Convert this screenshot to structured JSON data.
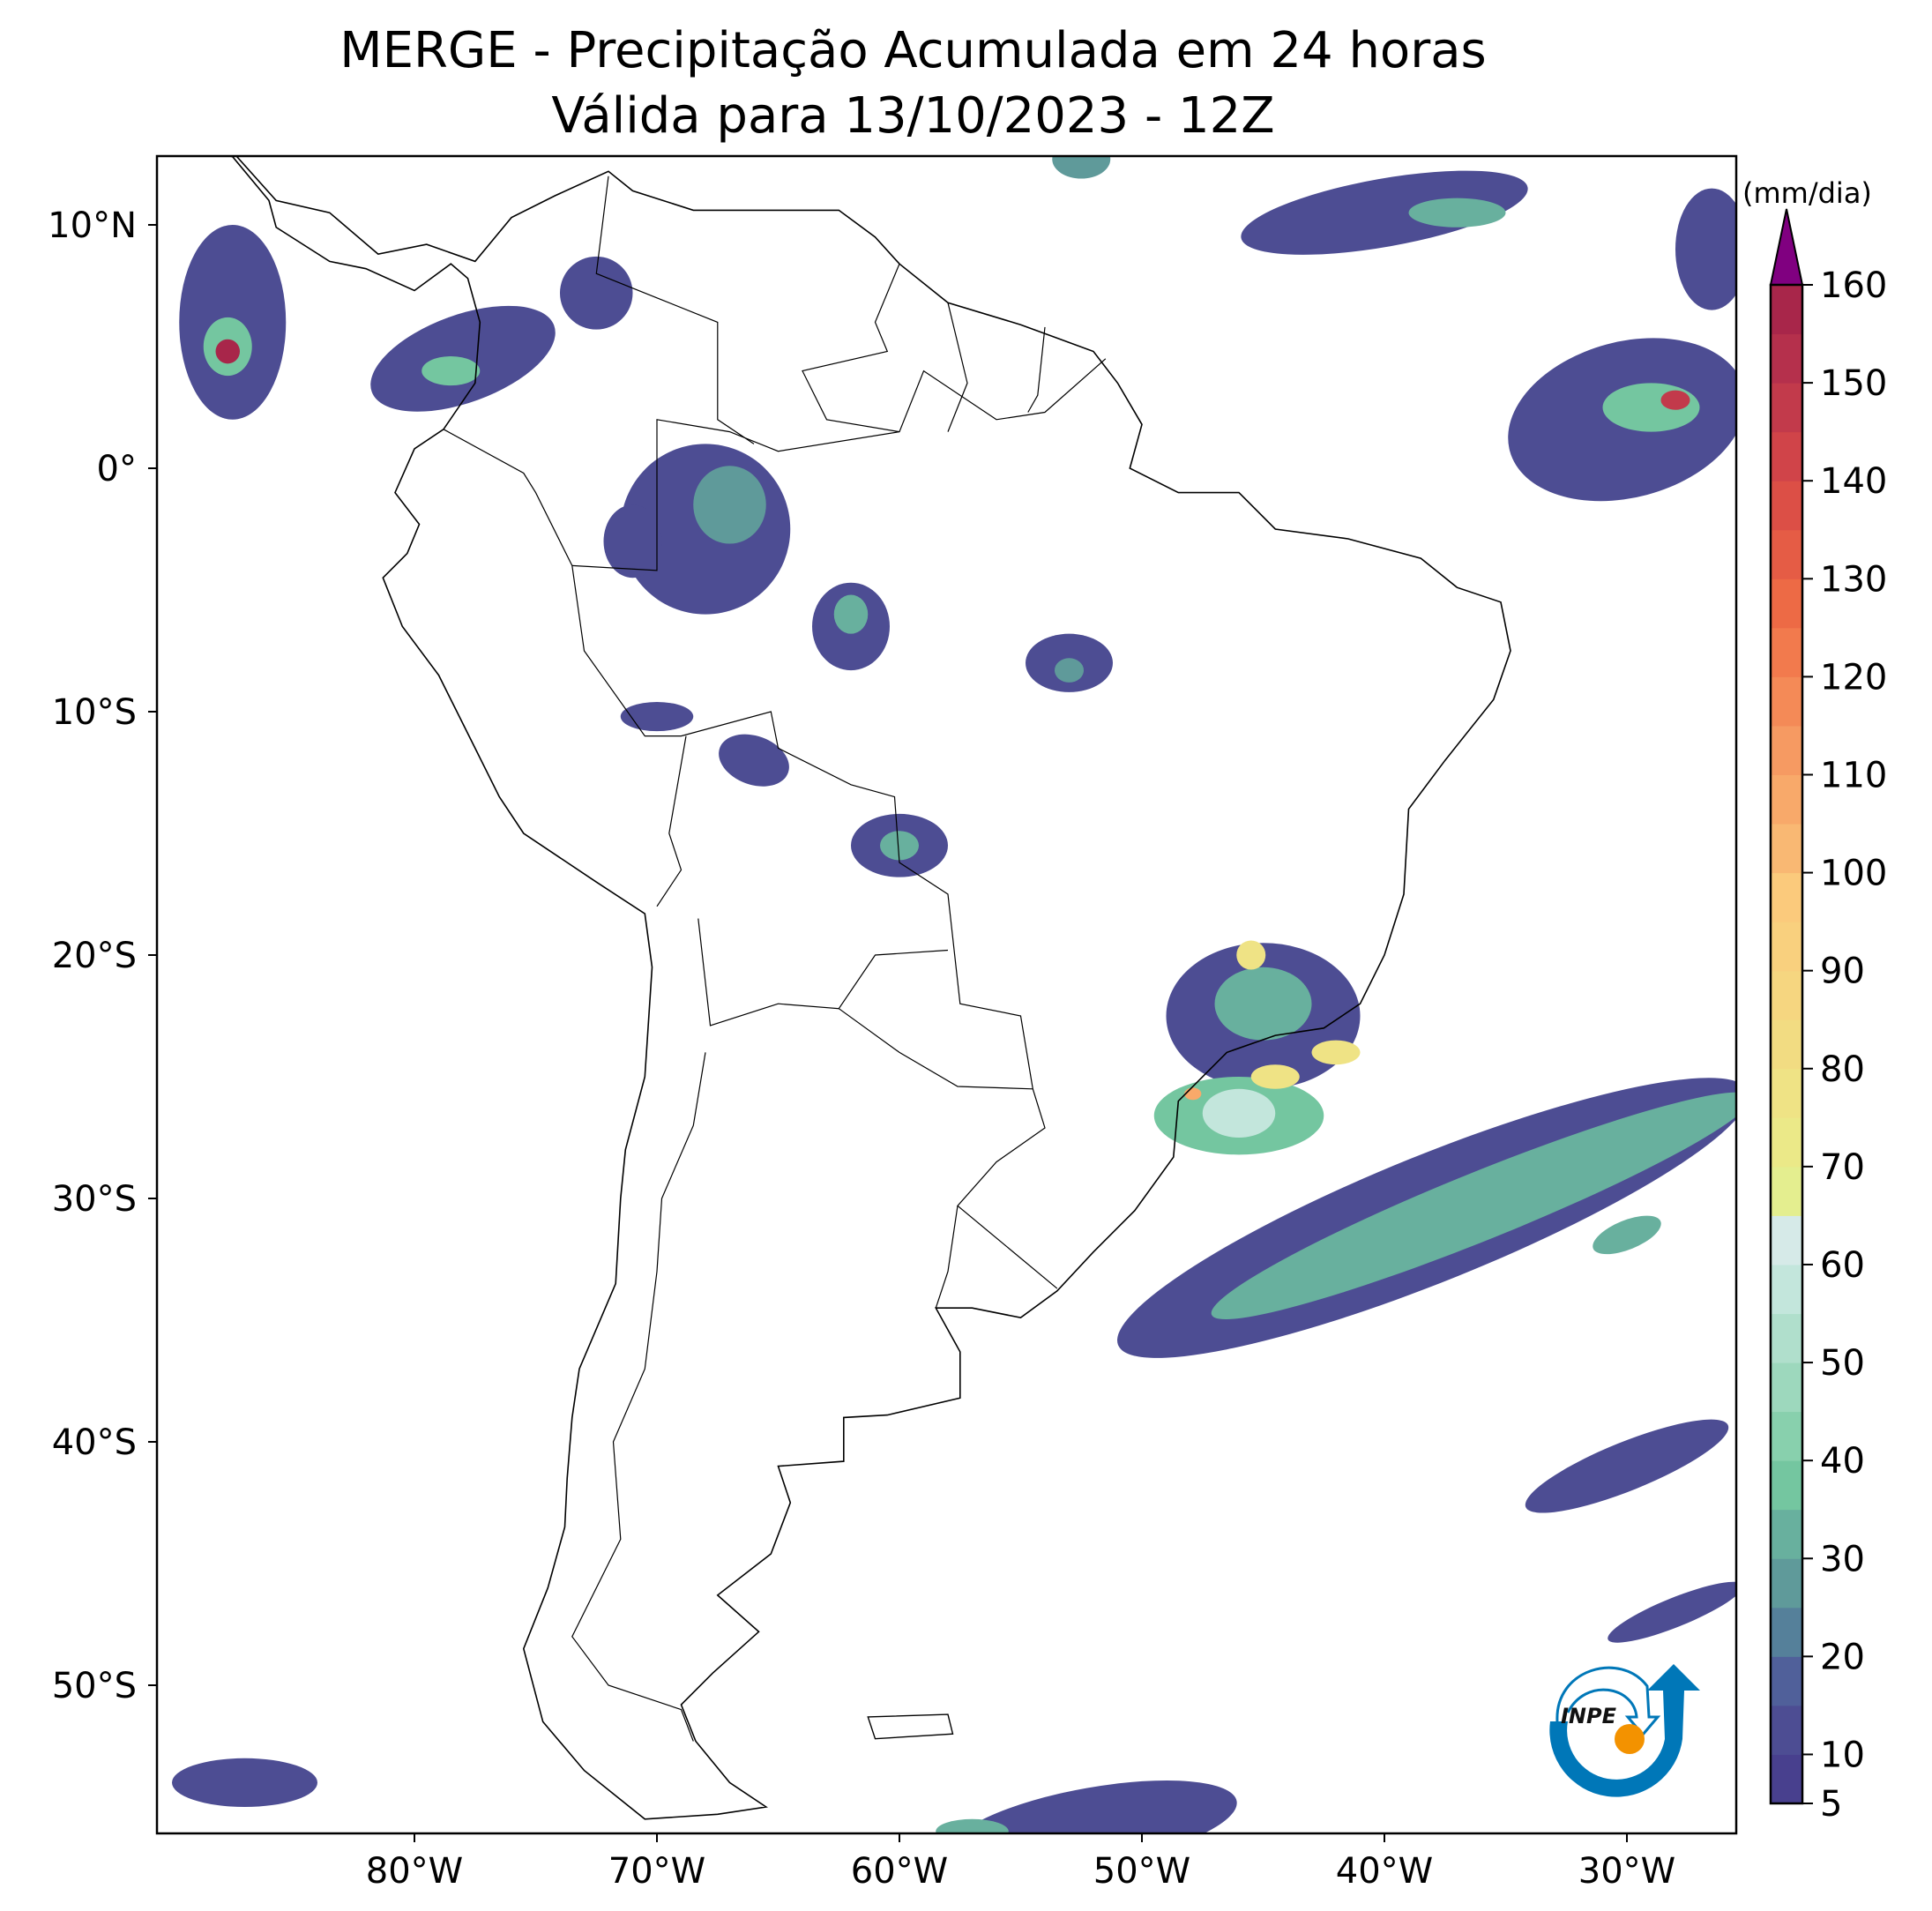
{
  "title": {
    "line1": "MERGE - Precipitação Acumulada em 24 horas",
    "line2": "Válida para 13/10/2023 - 12Z"
  },
  "map": {
    "lon_ticks": [
      "80°W",
      "70°W",
      "60°W",
      "50°W",
      "40°W",
      "30°W"
    ],
    "lat_ticks": [
      "10°N",
      "0°",
      "10°S",
      "20°S",
      "30°S",
      "40°S",
      "50°S"
    ],
    "lon_values": [
      -80,
      -70,
      -60,
      -50,
      -40,
      -30
    ],
    "lat_values": [
      10,
      0,
      -10,
      -20,
      -30,
      -40,
      -50
    ],
    "extent": {
      "lon": [
        -90.6,
        -25.5
      ],
      "lat": [
        12.8,
        -56
      ]
    }
  },
  "colorbar": {
    "unit_label": "(mm/dia)",
    "tick_labels": [
      "5",
      "10",
      "20",
      "30",
      "40",
      "50",
      "60",
      "70",
      "80",
      "90",
      "100",
      "110",
      "120",
      "130",
      "140",
      "150",
      "160"
    ],
    "levels": [
      5,
      10,
      15,
      20,
      25,
      30,
      35,
      40,
      45,
      50,
      55,
      60,
      65,
      70,
      75,
      80,
      85,
      90,
      95,
      100,
      105,
      110,
      115,
      120,
      125,
      130,
      135,
      140,
      145,
      150,
      155,
      160
    ],
    "colors": [
      "#48408e",
      "#4d4d93",
      "#50609a",
      "#55809a",
      "#5f9a9a",
      "#68b09e",
      "#74c6a0",
      "#88d0ad",
      "#9dd8bd",
      "#b0dfcc",
      "#c3e6dc",
      "#d6eae8",
      "#e4ee8f",
      "#ebe988",
      "#efe385",
      "#f2dc82",
      "#f6d680",
      "#f9d07e",
      "#fbca7c",
      "#f9b873",
      "#f8a96a",
      "#f69a62",
      "#f48a57",
      "#f27a4d",
      "#ed6a45",
      "#e55c45",
      "#dc4f46",
      "#d04449",
      "#c23a4b",
      "#b5304c",
      "#a8264a"
    ],
    "extend_color": "#800080"
  },
  "logo": {
    "text": "INPE"
  }
}
